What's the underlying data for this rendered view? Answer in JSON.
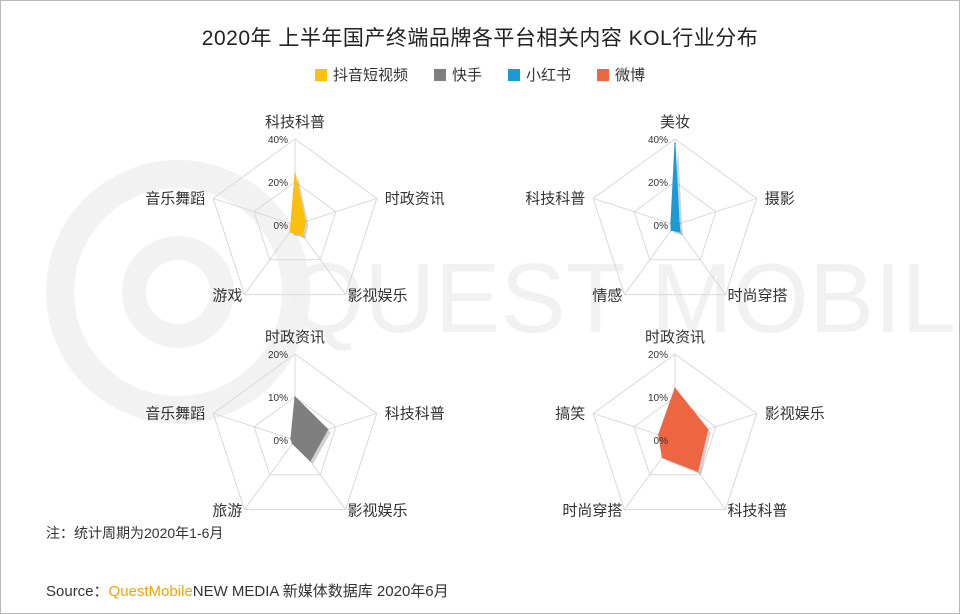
{
  "title": "2020年 上半年国产终端品牌各平台相关内容 KOL行业分布",
  "legend": [
    {
      "name": "抖音短视频",
      "color": "#fbbf0e"
    },
    {
      "name": "快手",
      "color": "#7f7f7f"
    },
    {
      "name": "小红书",
      "color": "#1a9ad6"
    },
    {
      "name": "微博",
      "color": "#ee6541"
    }
  ],
  "chart_data": [
    {
      "type": "radar",
      "series_name": "抖音短视频",
      "color": "#fbbf0e",
      "categories": [
        "科技科普",
        "时政资讯",
        "影视娱乐",
        "游戏",
        "音乐舞蹈"
      ],
      "values": [
        24,
        5,
        6,
        4,
        2
      ],
      "ticks": [
        "0%",
        "20%",
        "40%"
      ],
      "max": 40
    },
    {
      "type": "radar",
      "series_name": "小红书",
      "color": "#1a9ad6",
      "categories": [
        "美妆",
        "摄影",
        "时尚穿搭",
        "情感",
        "科技科普"
      ],
      "values": [
        38,
        2,
        4,
        3,
        2
      ],
      "ticks": [
        "0%",
        "20%",
        "40%"
      ],
      "max": 40
    },
    {
      "type": "radar",
      "series_name": "快手",
      "color": "#7f7f7f",
      "categories": [
        "时政资讯",
        "科技科普",
        "影视娱乐",
        "旅游",
        "音乐舞蹈"
      ],
      "values": [
        10,
        8,
        6,
        1,
        1
      ],
      "ticks": [
        "0%",
        "10%",
        "20%"
      ],
      "max": 20
    },
    {
      "type": "radar",
      "series_name": "微博",
      "color": "#ee6541",
      "categories": [
        "时政资讯",
        "影视娱乐",
        "科技科普",
        "时尚穿搭",
        "搞笑"
      ],
      "values": [
        12,
        8,
        9,
        5,
        4
      ],
      "ticks": [
        "0%",
        "10%",
        "20%"
      ],
      "max": 20
    }
  ],
  "footnote": "注：统计周期为2020年1-6月",
  "source": {
    "prefix": "Source：",
    "brand": "QuestMobile",
    "rest": "NEW MEDIA 新媒体数据库 2020年6月"
  },
  "watermark": "QUEST MOBILE"
}
